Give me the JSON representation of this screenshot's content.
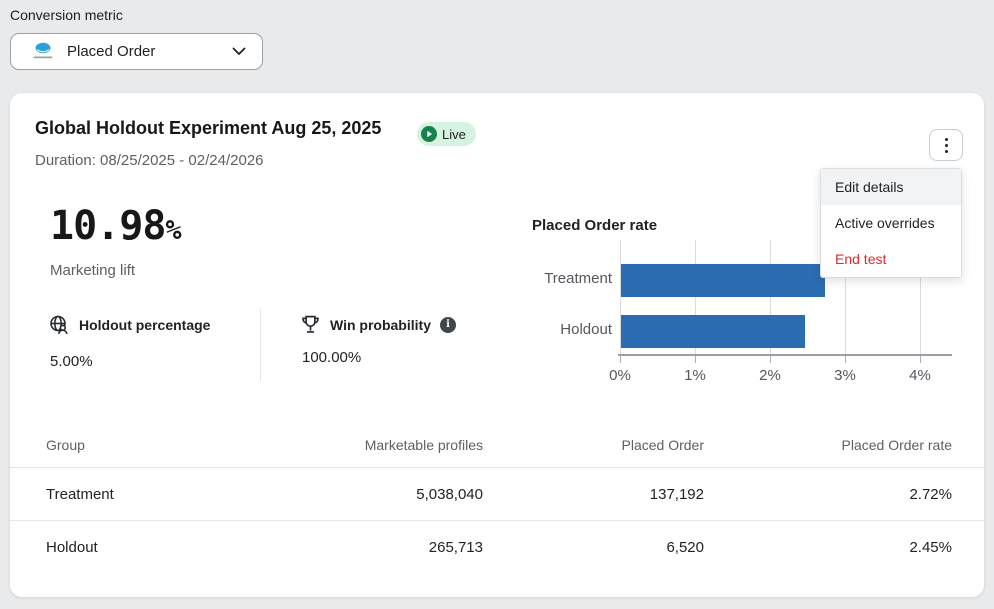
{
  "conversion_metric": {
    "label": "Conversion metric",
    "selected": "Placed Order",
    "icon": "integration-logo"
  },
  "experiment": {
    "title": "Global Holdout Experiment Aug 25, 2025",
    "status_badge": "Live",
    "duration": "Duration: 08/25/2025 - 02/24/2026"
  },
  "menu": {
    "items": [
      {
        "label": "Edit details",
        "highlighted": true
      },
      {
        "label": "Active overrides",
        "highlighted": false
      },
      {
        "label": "End test",
        "highlighted": false,
        "color": "#d82c2c"
      }
    ]
  },
  "metrics": {
    "lift_value": "10.98",
    "lift_unit": "%",
    "lift_label": "Marketing lift",
    "holdout_percentage": {
      "label": "Holdout percentage",
      "value": "5.00%",
      "icon": "globe-person"
    },
    "win_probability": {
      "label": "Win probability",
      "value": "100.00%",
      "icon": "trophy",
      "info_icon": "info-circle"
    }
  },
  "chart_data": {
    "type": "bar",
    "orientation": "horizontal",
    "title": "Placed Order rate",
    "categories": [
      "Treatment",
      "Holdout"
    ],
    "values": [
      2.72,
      2.45
    ],
    "unit": "%",
    "x_ticks": [
      "0%",
      "1%",
      "2%",
      "3%",
      "4%"
    ],
    "x_tick_values": [
      0,
      1,
      2,
      3,
      4
    ],
    "xlim": [
      0,
      4.27
    ],
    "bar_color": "#2c6cb0",
    "grid": true,
    "legend": false
  },
  "table": {
    "headers": [
      "Group",
      "Marketable profiles",
      "Placed Order",
      "Placed Order rate"
    ],
    "rows": [
      [
        "Treatment",
        "5,038,040",
        "137,192",
        "2.72%"
      ],
      [
        "Holdout",
        "265,713",
        "6,520",
        "2.45%"
      ]
    ]
  },
  "colors": {
    "background": "#e8eaec",
    "bar_blue": "#2c6cb0",
    "live_badge_bg": "#d6f3e1",
    "live_dot": "#17824b",
    "danger_red": "#d82c2c",
    "muted_text": "#5c6166"
  }
}
